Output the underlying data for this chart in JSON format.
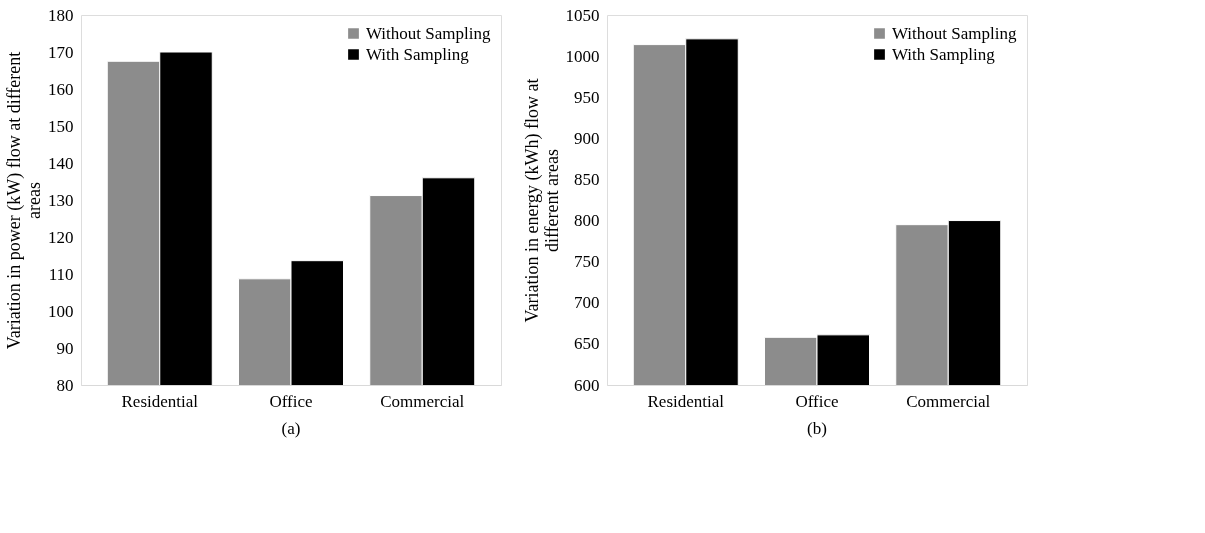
{
  "chart_data": [
    {
      "type": "bar",
      "ylabel": "Variation in power (kW) flow at different areas",
      "categories": [
        "Residential",
        "Office",
        "Commercial"
      ],
      "series": [
        {
          "name": "Without Sampling",
          "color": "#8c8c8c",
          "values": [
            167.5,
            108.7,
            131.2
          ]
        },
        {
          "name": "With Sampling",
          "color": "#000000",
          "values": [
            170,
            113.6,
            136
          ]
        }
      ],
      "ylim": [
        80,
        180
      ],
      "yticks": [
        80,
        90,
        100,
        110,
        120,
        130,
        140,
        150,
        160,
        170,
        180
      ],
      "grid": false,
      "legend": "top right",
      "annotations": [
        "(a)"
      ]
    },
    {
      "type": "bar",
      "ylabel": "Variation in energy (kWh) flow at different areas",
      "categories": [
        "Residential",
        "Office",
        "Commercial"
      ],
      "series": [
        {
          "name": "Without Sampling",
          "color": "#8c8c8c",
          "values": [
            1014,
            658,
            795
          ]
        },
        {
          "name": "With Sampling",
          "color": "#000000",
          "values": [
            1021,
            661,
            800
          ]
        }
      ],
      "ylim": [
        600,
        1050
      ],
      "yticks": [
        600,
        650,
        700,
        750,
        800,
        850,
        900,
        950,
        1000,
        1050
      ],
      "grid": false,
      "legend": "top right",
      "annotations": [
        "(b)"
      ]
    }
  ]
}
